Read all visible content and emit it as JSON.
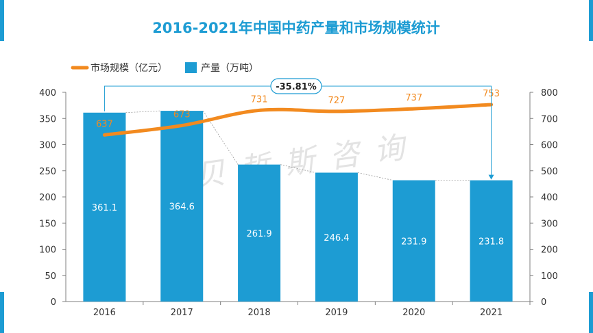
{
  "chart_data": {
    "type": "bar+line",
    "title": "2016-2021年中国中药产量和市场规模统计",
    "categories": [
      "2016",
      "2017",
      "2018",
      "2019",
      "2020",
      "2021"
    ],
    "series": [
      {
        "name": "市场规模（亿元）",
        "type": "line",
        "axis": "right",
        "values": [
          637,
          673,
          731,
          727,
          737,
          753
        ]
      },
      {
        "name": "产量（万吨）",
        "type": "bar",
        "axis": "left",
        "values": [
          361.1,
          364.6,
          261.9,
          246.4,
          231.9,
          231.8
        ]
      }
    ],
    "bar_labels": [
      "361.1",
      "364.6",
      "261.9",
      "246.4",
      "231.9",
      "231.8"
    ],
    "line_labels": [
      "637",
      "673",
      "731",
      "727",
      "737",
      "753"
    ],
    "y_left": {
      "min": 0,
      "max": 400,
      "step": 50,
      "ticks": [
        "0",
        "50",
        "100",
        "150",
        "200",
        "250",
        "300",
        "350",
        "400"
      ]
    },
    "y_right": {
      "min": 0,
      "max": 800,
      "step": 100,
      "ticks": [
        "0",
        "100",
        "200",
        "300",
        "400",
        "500",
        "600",
        "700",
        "800"
      ]
    },
    "annotation": {
      "text": "-35.81%",
      "from_category": "2016",
      "to_category": "2021"
    },
    "watermark": "贝哲斯咨询",
    "legend_position": "top-left",
    "colors": {
      "bar": "#1d9cd3",
      "line": "#f28a1f",
      "title": "#1d9cd3",
      "line_label": "#f28a1f",
      "bar_label": "#ffffff",
      "axis": "#7f7f7f"
    },
    "grid": false
  }
}
